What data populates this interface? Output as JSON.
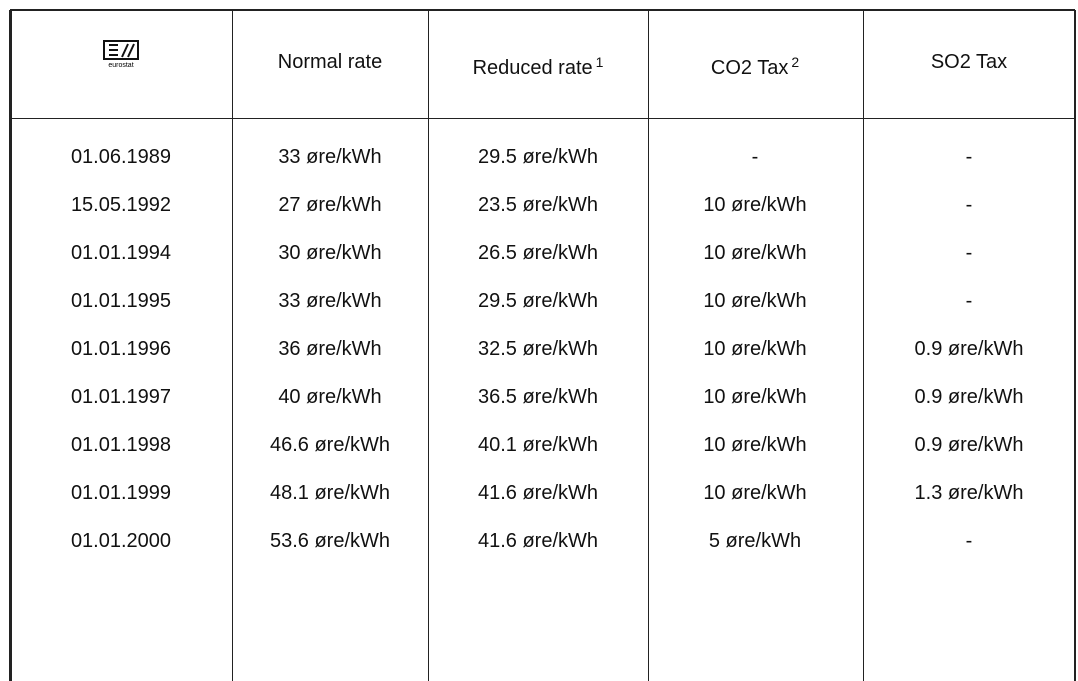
{
  "header": {
    "logo": "eurostat",
    "columns": [
      {
        "text": "Normal rate"
      },
      {
        "text": "Reduced rate",
        "note": "1"
      },
      {
        "text": "CO2 Tax",
        "note": "2"
      },
      {
        "text": "SO2 Tax"
      }
    ]
  },
  "table": {
    "rows": [
      [
        "01.06.1989",
        "33 øre/kWh",
        "29.5 øre/kWh",
        "-",
        "-"
      ],
      [
        "15.05.1992",
        "27 øre/kWh",
        "23.5 øre/kWh",
        "10 øre/kWh",
        "-"
      ],
      [
        "01.01.1994",
        "30 øre/kWh",
        "26.5 øre/kWh",
        "10 øre/kWh",
        "-"
      ],
      [
        "01.01.1995",
        "33 øre/kWh",
        "29.5 øre/kWh",
        "10 øre/kWh",
        "-"
      ],
      [
        "01.01.1996",
        "36 øre/kWh",
        "32.5 øre/kWh",
        "10 øre/kWh",
        "0.9 øre/kWh"
      ],
      [
        "01.01.1997",
        "40 øre/kWh",
        "36.5 øre/kWh",
        "10 øre/kWh",
        "0.9 øre/kWh"
      ],
      [
        "01.01.1998",
        "46.6 øre/kWh",
        "40.1 øre/kWh",
        "10 øre/kWh",
        "0.9 øre/kWh"
      ],
      [
        "01.01.1999",
        "48.1 øre/kWh",
        "41.6 øre/kWh",
        "10 øre/kWh",
        "1.3 øre/kWh"
      ],
      [
        "01.01.2000",
        "53.6 øre/kWh",
        "41.6 øre/kWh",
        "5 øre/kWh",
        "-"
      ]
    ]
  }
}
